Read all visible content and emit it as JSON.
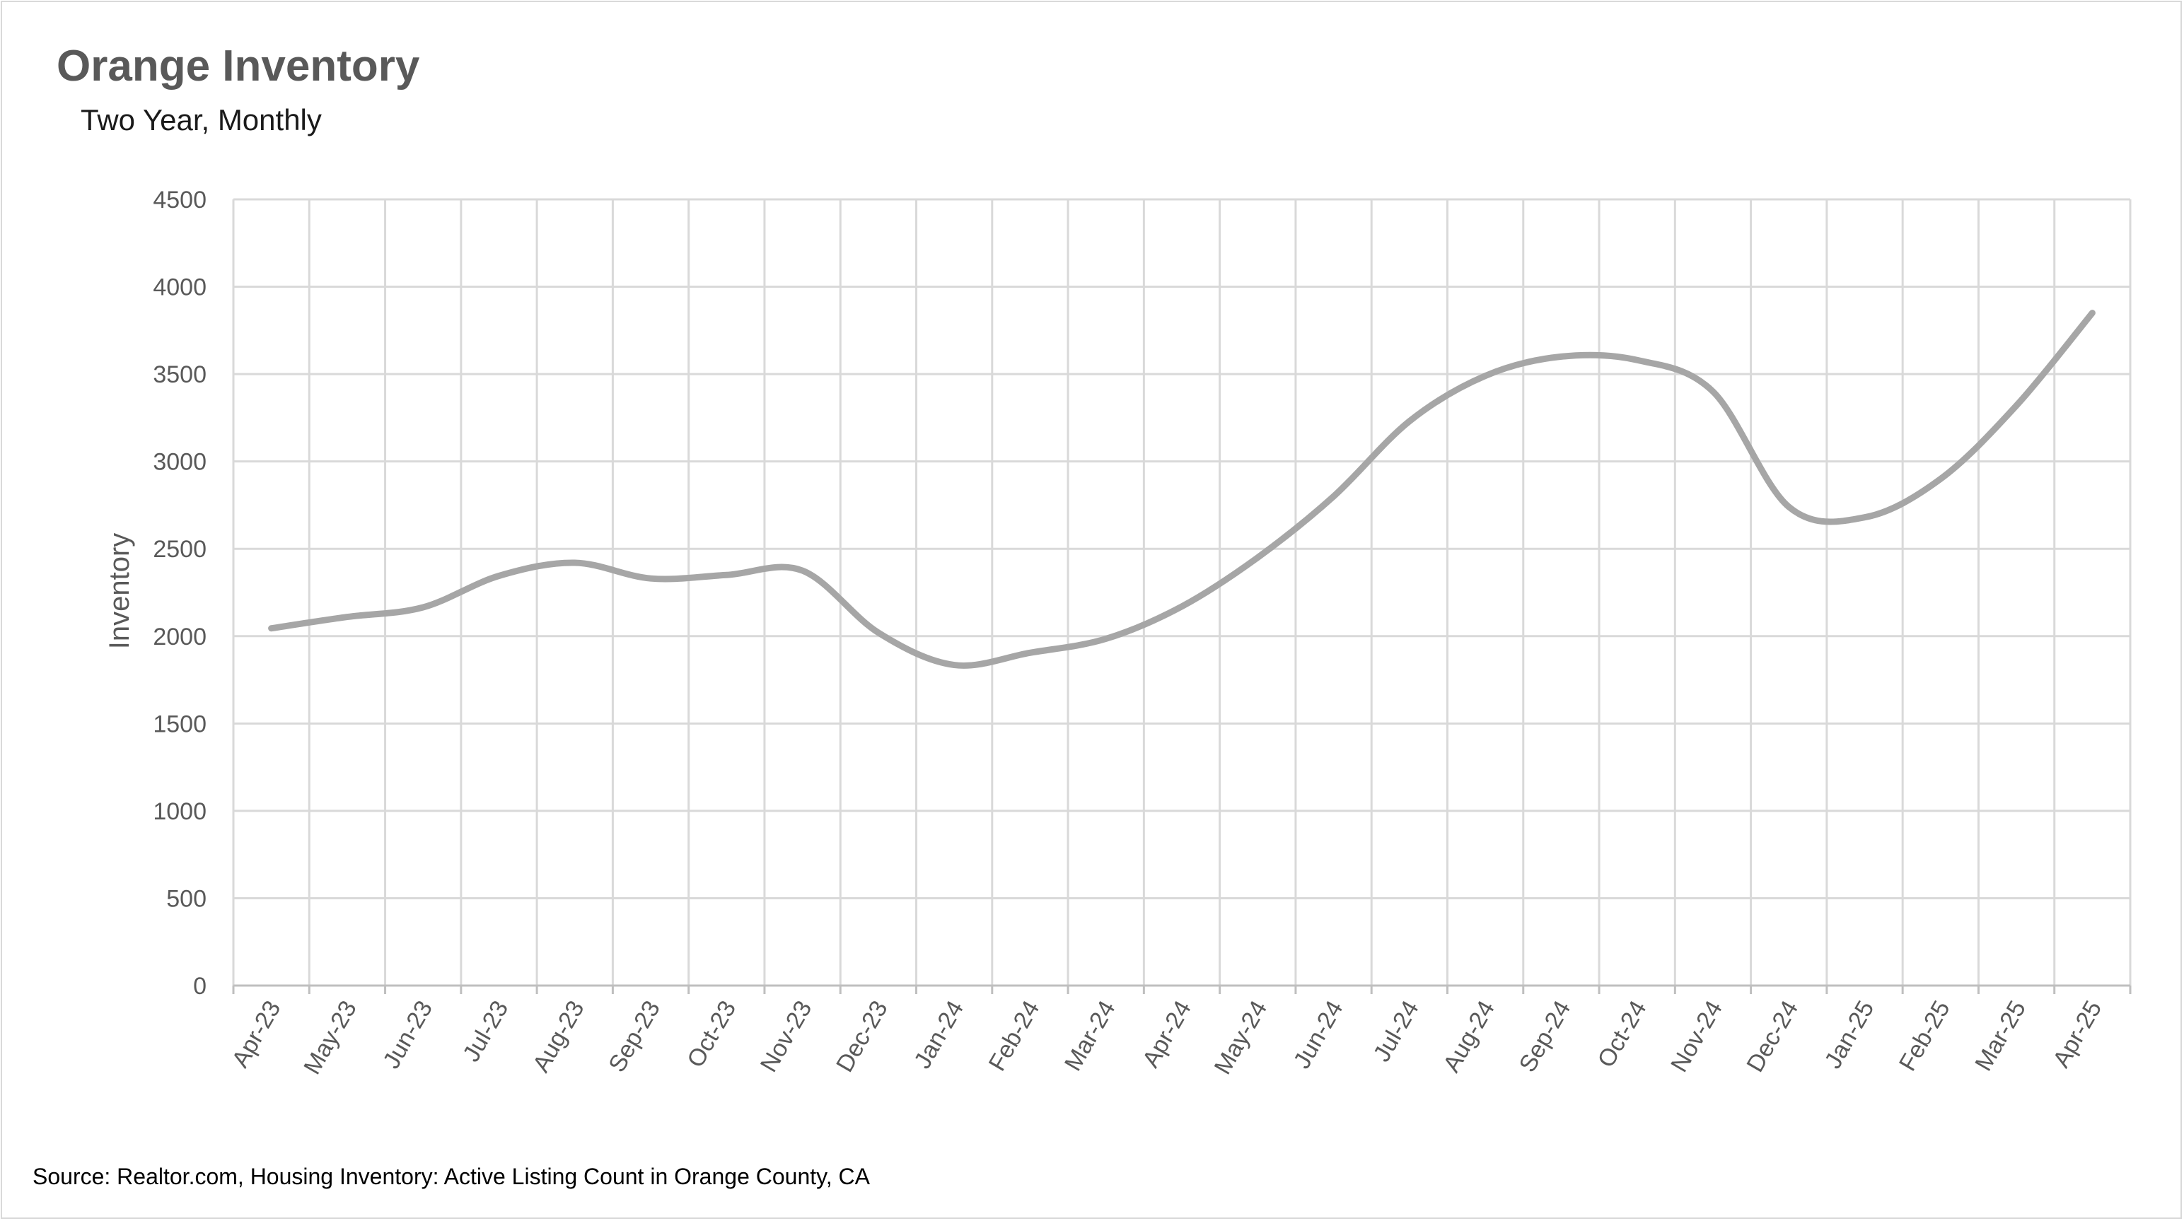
{
  "chart_data": {
    "type": "line",
    "title": "Orange Inventory",
    "subtitle": "Two Year, Monthly",
    "xlabel": "",
    "ylabel": "Inventory",
    "ylim": [
      0,
      4500
    ],
    "yticks": [
      0,
      500,
      1000,
      1500,
      2000,
      2500,
      3000,
      3500,
      4000,
      4500
    ],
    "grid": true,
    "smooth": true,
    "legend": "none",
    "categories": [
      "Apr-23",
      "May-23",
      "Jun-23",
      "Jul-23",
      "Aug-23",
      "Sep-23",
      "Oct-23",
      "Nov-23",
      "Dec-23",
      "Jan-24",
      "Feb-24",
      "Mar-24",
      "Apr-24",
      "May-24",
      "Jun-24",
      "Jul-24",
      "Aug-24",
      "Sep-24",
      "Oct-24",
      "Nov-24",
      "Dec-24",
      "Jan-25",
      "Feb-25",
      "Mar-25",
      "Apr-25"
    ],
    "series": [
      {
        "color": "#a6a6a6",
        "values": [
          2045,
          2110,
          2165,
          2345,
          2420,
          2330,
          2350,
          2375,
          2020,
          1835,
          1905,
          1985,
          2170,
          2450,
          2800,
          3230,
          3490,
          3600,
          3580,
          3400,
          2740,
          2680,
          2900,
          3320,
          3850
        ]
      }
    ],
    "source": "Source: Realtor.com, Housing Inventory: Active Listing Count in Orange County, CA"
  }
}
